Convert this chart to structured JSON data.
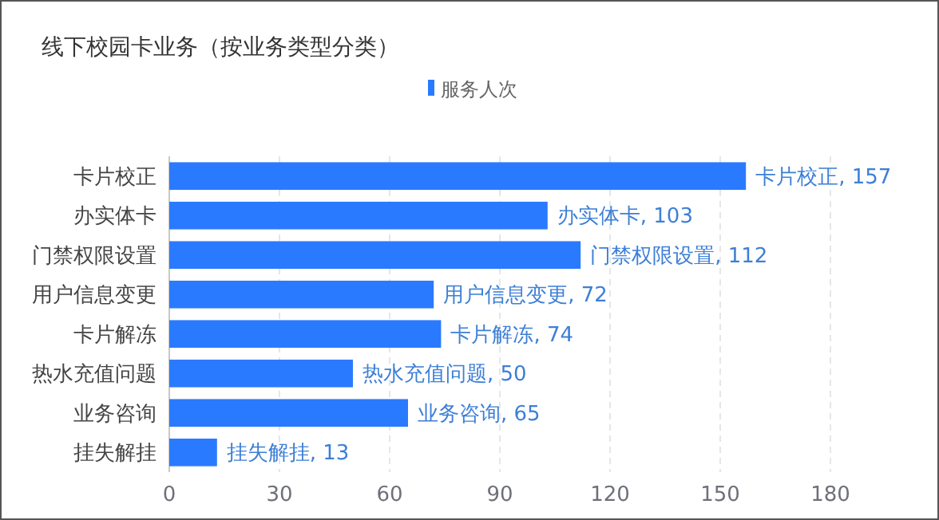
{
  "chart_data": {
    "type": "bar",
    "orientation": "horizontal",
    "title": "线下校园卡业务（按业务类型分类）",
    "categories": [
      "卡片校正",
      "办实体卡",
      "门禁权限设置",
      "用户信息变更",
      "卡片解冻",
      "热水充值问题",
      "业务咨询",
      "挂失解挂"
    ],
    "series": [
      {
        "name": "服务人次",
        "color": "#2a7aff",
        "values": [
          157,
          103,
          112,
          72,
          74,
          50,
          65,
          13
        ],
        "value_labels": [
          "卡片校正, 157",
          "办实体卡, 103",
          "门禁权限设置, 112",
          "用户信息变更, 72",
          "卡片解冻, 74",
          "热水充值问题, 50",
          "业务咨询, 65",
          "挂失解挂, 13"
        ]
      }
    ],
    "xlim": [
      0,
      180
    ],
    "xticks": [
      0,
      30,
      60,
      90,
      120,
      150,
      180
    ],
    "grid": "x",
    "legend": "top"
  }
}
